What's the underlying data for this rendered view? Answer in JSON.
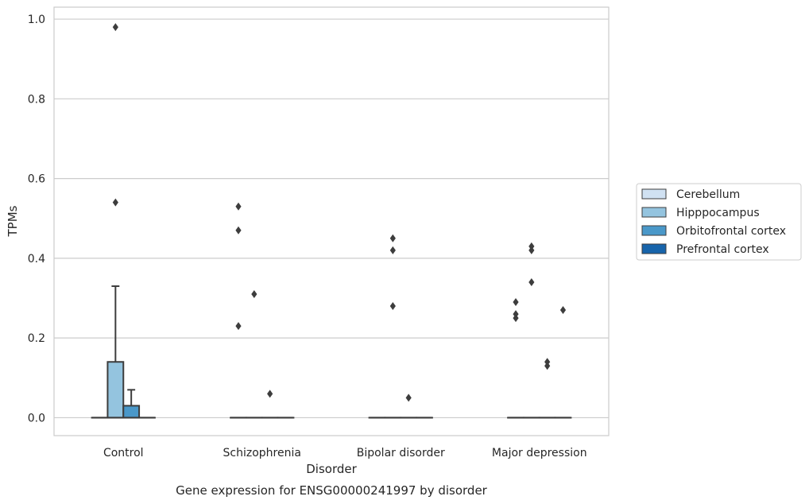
{
  "chart_data": {
    "type": "box",
    "title": "",
    "caption": "Gene expression for ENSG00000241997 by disorder",
    "xlabel": "Disorder",
    "ylabel": "TPMs",
    "ylim": [
      -0.045,
      1.03
    ],
    "yticks": [
      0.0,
      0.2,
      0.4,
      0.6,
      0.8,
      1.0
    ],
    "ytick_labels": [
      "0.0",
      "0.2",
      "0.4",
      "0.6",
      "0.8",
      "1.0"
    ],
    "grid": "horizontal",
    "legend_position": "right",
    "categories": [
      "Control",
      "Schizophrenia",
      "Bipolar disorder",
      "Major depression"
    ],
    "series": [
      {
        "name": "Cerebellum",
        "color": "#d0e1f2",
        "boxes": [
          {
            "q1": 0,
            "median": 0,
            "q3": 0,
            "whisker_low": 0,
            "whisker_high": 0,
            "outliers": []
          },
          {
            "q1": 0,
            "median": 0,
            "q3": 0,
            "whisker_low": 0,
            "whisker_high": 0,
            "outliers": [
              0.23,
              0.47,
              0.53
            ]
          },
          {
            "q1": 0,
            "median": 0,
            "q3": 0,
            "whisker_low": 0,
            "whisker_high": 0,
            "outliers": []
          },
          {
            "q1": 0,
            "median": 0,
            "q3": 0,
            "whisker_low": 0,
            "whisker_high": 0,
            "outliers": [
              0.25,
              0.26,
              0.29
            ]
          }
        ]
      },
      {
        "name": "Hipppocampus",
        "color": "#94c4df",
        "boxes": [
          {
            "q1": 0,
            "median": 0,
            "q3": 0.14,
            "whisker_low": 0,
            "whisker_high": 0.33,
            "outliers": [
              0.54,
              0.98
            ]
          },
          {
            "q1": 0,
            "median": 0,
            "q3": 0,
            "whisker_low": 0,
            "whisker_high": 0,
            "outliers": [
              0.31
            ]
          },
          {
            "q1": 0,
            "median": 0,
            "q3": 0,
            "whisker_low": 0,
            "whisker_high": 0,
            "outliers": [
              0.28,
              0.42,
              0.45
            ]
          },
          {
            "q1": 0,
            "median": 0,
            "q3": 0,
            "whisker_low": 0,
            "whisker_high": 0,
            "outliers": [
              0.34,
              0.42,
              0.43
            ]
          }
        ]
      },
      {
        "name": "Orbitofrontal cortex",
        "color": "#4a98c9",
        "boxes": [
          {
            "q1": 0,
            "median": 0,
            "q3": 0.03,
            "whisker_low": 0,
            "whisker_high": 0.07,
            "outliers": []
          },
          {
            "q1": 0,
            "median": 0,
            "q3": 0,
            "whisker_low": 0,
            "whisker_high": 0,
            "outliers": [
              0.06
            ]
          },
          {
            "q1": 0,
            "median": 0,
            "q3": 0,
            "whisker_low": 0,
            "whisker_high": 0,
            "outliers": [
              0.05
            ]
          },
          {
            "q1": 0,
            "median": 0,
            "q3": 0,
            "whisker_low": 0,
            "whisker_high": 0,
            "outliers": [
              0.13,
              0.14
            ]
          }
        ]
      },
      {
        "name": "Prefrontal cortex",
        "color": "#1764ab",
        "boxes": [
          {
            "q1": 0,
            "median": 0,
            "q3": 0,
            "whisker_low": 0,
            "whisker_high": 0,
            "outliers": []
          },
          {
            "q1": 0,
            "median": 0,
            "q3": 0,
            "whisker_low": 0,
            "whisker_high": 0,
            "outliers": []
          },
          {
            "q1": 0,
            "median": 0,
            "q3": 0,
            "whisker_low": 0,
            "whisker_high": 0,
            "outliers": []
          },
          {
            "q1": 0,
            "median": 0,
            "q3": 0,
            "whisker_low": 0,
            "whisker_high": 0,
            "outliers": [
              0.27
            ]
          }
        ]
      }
    ]
  }
}
